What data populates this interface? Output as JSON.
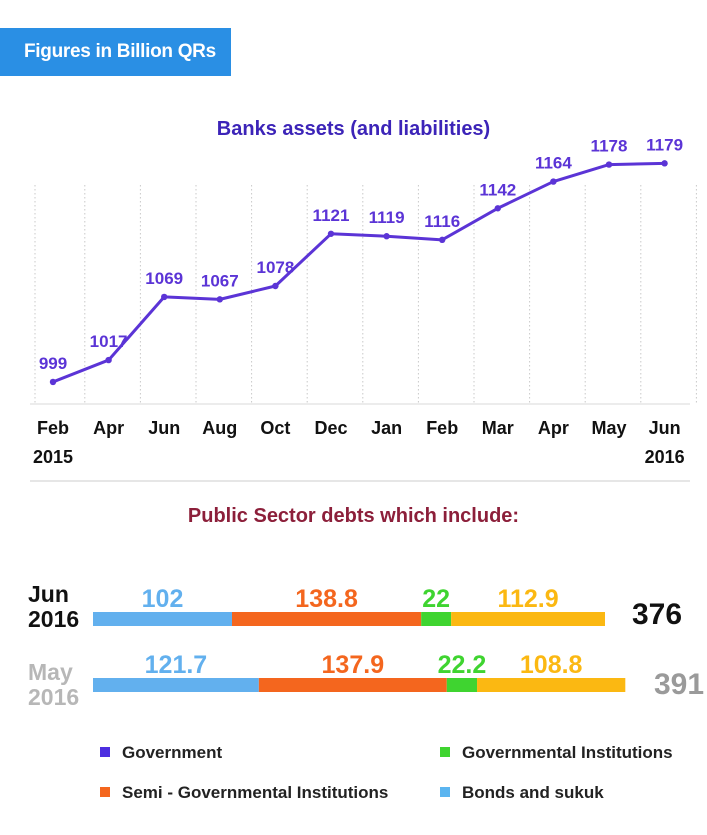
{
  "header": {
    "badge": "Figures in Billion QRs"
  },
  "colors": {
    "badge": "#2a8fe4",
    "line": "#5b34d6",
    "line_title": "#3c24b8",
    "debt_title": "#8c1f3a",
    "government": "#4d2fe0",
    "governmental_institutions": "#3fd430",
    "semi_governmental": "#f4661e",
    "bonds_sukuk": "#5bb5f0",
    "bonds_sukuk_bar": "#62b0ee",
    "segment_gold": "#fbb812"
  },
  "chart_data": [
    {
      "type": "line",
      "title": "Banks assets (and liabilities)",
      "categories": [
        "Feb",
        "Apr",
        "Jun",
        "Aug",
        "Oct",
        "Dec",
        "Jan",
        "Feb",
        "Mar",
        "Apr",
        "May",
        "Jun"
      ],
      "year_labels": [
        {
          "index": 0,
          "label": "2015"
        },
        {
          "index": 11,
          "label": "2016"
        }
      ],
      "values": [
        999,
        1017,
        1069,
        1067,
        1078,
        1121,
        1119,
        1116,
        1142,
        1164,
        1178,
        1179
      ],
      "ylim": [
        980,
        1190
      ],
      "xlabel": "",
      "ylabel": "",
      "grid": "vertical-dotted"
    },
    {
      "type": "bar",
      "orientation": "horizontal-stacked",
      "title": "Public Sector debts which include:",
      "rows": [
        {
          "label_line1": "Jun",
          "label_line2": "2016",
          "total": "376",
          "segments": [
            {
              "value": 102,
              "text": "102",
              "color": "#62b0ee"
            },
            {
              "value": 138.8,
              "text": "138.8",
              "color": "#f4661e"
            },
            {
              "value": 22,
              "text": "22",
              "color": "#3fd430"
            },
            {
              "value": 112.9,
              "text": "112.9",
              "color": "#fbb812"
            }
          ]
        },
        {
          "label_line1": "May",
          "label_line2": "2016",
          "total": "391",
          "segments": [
            {
              "value": 121.7,
              "text": "121.7",
              "color": "#62b0ee"
            },
            {
              "value": 137.9,
              "text": "137.9",
              "color": "#f4661e"
            },
            {
              "value": 22.2,
              "text": "22.2",
              "color": "#3fd430"
            },
            {
              "value": 108.8,
              "text": "108.8",
              "color": "#fbb812"
            }
          ]
        }
      ]
    }
  ],
  "legend": [
    {
      "label": "Government",
      "color": "#4d2fe0"
    },
    {
      "label": "Governmental Institutions",
      "color": "#3fd430"
    },
    {
      "label": "Semi - Governmental Institutions",
      "color": "#f4661e"
    },
    {
      "label": "Bonds and sukuk",
      "color": "#5bb5f0"
    }
  ]
}
